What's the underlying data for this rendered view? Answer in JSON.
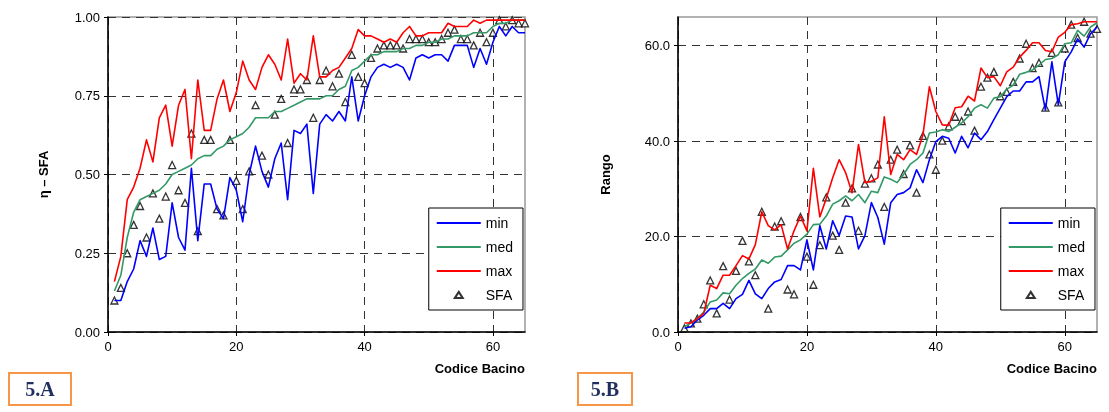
{
  "chart_data": [
    {
      "type": "line",
      "xlabel": "Codice Bacino",
      "ylabel": "η – SFA",
      "xlim": [
        0,
        65
      ],
      "xticks": [
        0,
        20,
        40,
        60
      ],
      "ylim": [
        0,
        1
      ],
      "yticks": [
        {
          "value": 0,
          "label": "0.00"
        },
        0.25,
        {
          "value": 0.5,
          "label": "0.50"
        },
        0.75,
        {
          "value": 1,
          "label": "1.00"
        }
      ],
      "grid": true,
      "legend": "bottom right",
      "annotations": [
        "5.A"
      ],
      "x": [
        1,
        2,
        3,
        4,
        5,
        6,
        7,
        8,
        9,
        10,
        11,
        12,
        13,
        14,
        15,
        16,
        17,
        18,
        19,
        20,
        21,
        22,
        23,
        24,
        25,
        26,
        27,
        28,
        29,
        30,
        31,
        32,
        33,
        34,
        35,
        36,
        37,
        38,
        39,
        40,
        41,
        42,
        43,
        44,
        45,
        46,
        47,
        48,
        49,
        50,
        51,
        52,
        53,
        54,
        55,
        56,
        57,
        58,
        59,
        60,
        61,
        62,
        63,
        64,
        65
      ],
      "series": [
        {
          "name": "min",
          "marker": "none",
          "color": "#0000ff",
          "values": [
            0.1,
            0.1,
            0.16,
            0.2,
            0.29,
            0.24,
            0.33,
            0.23,
            0.24,
            0.41,
            0.3,
            0.26,
            0.52,
            0.29,
            0.47,
            0.47,
            0.39,
            0.36,
            0.49,
            0.45,
            0.35,
            0.5,
            0.59,
            0.51,
            0.46,
            0.55,
            0.6,
            0.42,
            0.64,
            0.63,
            0.66,
            0.44,
            0.66,
            0.69,
            0.67,
            0.7,
            0.67,
            0.81,
            0.67,
            0.75,
            0.81,
            0.84,
            0.85,
            0.84,
            0.85,
            0.84,
            0.8,
            0.87,
            0.88,
            0.87,
            0.88,
            0.88,
            0.86,
            0.91,
            0.91,
            0.91,
            0.84,
            0.9,
            0.85,
            0.92,
            0.97,
            0.94,
            0.97,
            0.95,
            0.95
          ]
        },
        {
          "name": "med",
          "marker": "none",
          "color": "#339966",
          "values": [
            0.13,
            0.18,
            0.3,
            0.38,
            0.42,
            0.43,
            0.44,
            0.45,
            0.47,
            0.5,
            0.51,
            0.52,
            0.53,
            0.55,
            0.56,
            0.56,
            0.58,
            0.59,
            0.61,
            0.62,
            0.63,
            0.65,
            0.68,
            0.68,
            0.68,
            0.7,
            0.7,
            0.71,
            0.72,
            0.73,
            0.74,
            0.74,
            0.74,
            0.75,
            0.75,
            0.77,
            0.78,
            0.83,
            0.84,
            0.86,
            0.88,
            0.88,
            0.89,
            0.89,
            0.89,
            0.9,
            0.9,
            0.91,
            0.91,
            0.92,
            0.92,
            0.93,
            0.93,
            0.94,
            0.94,
            0.94,
            0.95,
            0.95,
            0.95,
            0.97,
            0.98,
            0.98,
            0.99,
            0.99,
            0.99
          ]
        },
        {
          "name": "max",
          "marker": "none",
          "color": "#ff0000",
          "values": [
            0.16,
            0.24,
            0.42,
            0.46,
            0.52,
            0.61,
            0.54,
            0.68,
            0.72,
            0.59,
            0.72,
            0.77,
            0.55,
            0.8,
            0.64,
            0.64,
            0.74,
            0.8,
            0.7,
            0.76,
            0.86,
            0.8,
            0.77,
            0.84,
            0.88,
            0.85,
            0.8,
            0.93,
            0.79,
            0.82,
            0.8,
            0.94,
            0.81,
            0.81,
            0.83,
            0.84,
            0.87,
            0.9,
            0.96,
            0.94,
            0.94,
            0.93,
            0.92,
            0.93,
            0.92,
            0.95,
            0.97,
            0.94,
            0.94,
            0.95,
            0.95,
            0.95,
            0.98,
            0.97,
            0.97,
            0.97,
            0.99,
            0.98,
            0.99,
            0.99,
            0.99,
            0.99,
            0.99,
            0.99,
            0.99
          ]
        },
        {
          "name": "SFA",
          "type": "scatter",
          "marker": "triangle",
          "color": "#000000",
          "values": [
            0.1,
            0.14,
            0.25,
            0.34,
            0.4,
            0.3,
            0.44,
            0.36,
            0.43,
            0.53,
            0.45,
            0.41,
            0.63,
            0.32,
            0.61,
            0.61,
            0.39,
            0.37,
            0.61,
            0.48,
            0.39,
            0.51,
            0.72,
            0.56,
            0.5,
            0.69,
            0.74,
            0.6,
            0.77,
            0.77,
            0.8,
            0.68,
            0.8,
            0.83,
            0.78,
            0.82,
            0.73,
            0.88,
            0.81,
            0.79,
            0.87,
            0.9,
            0.91,
            0.91,
            0.91,
            0.9,
            0.93,
            0.93,
            0.93,
            0.92,
            0.92,
            0.93,
            0.95,
            0.96,
            0.93,
            0.93,
            0.91,
            0.95,
            0.92,
            0.95,
            0.99,
            0.97,
            0.99,
            0.98,
            0.98
          ]
        }
      ]
    },
    {
      "type": "line",
      "xlabel": "Codice Bacino",
      "ylabel": "Rango",
      "xlim": [
        0,
        65
      ],
      "xticks": [
        0,
        20,
        40,
        60
      ],
      "ylim": [
        0,
        66
      ],
      "yticks": [
        {
          "value": 0,
          "label": "0.0"
        },
        {
          "value": 20,
          "label": "20.0"
        },
        {
          "value": 40,
          "label": "40.0"
        },
        {
          "value": 60,
          "label": "60.0"
        }
      ],
      "grid": true,
      "legend": "bottom right",
      "annotations": [
        "5.B"
      ],
      "x": [
        1,
        2,
        3,
        4,
        5,
        6,
        7,
        8,
        9,
        10,
        11,
        12,
        13,
        14,
        15,
        16,
        17,
        18,
        19,
        20,
        21,
        22,
        23,
        24,
        25,
        26,
        27,
        28,
        29,
        30,
        31,
        32,
        33,
        34,
        35,
        36,
        37,
        38,
        39,
        40,
        41,
        42,
        43,
        44,
        45,
        46,
        47,
        48,
        49,
        50,
        51,
        52,
        53,
        54,
        55,
        56,
        57,
        58,
        59,
        60,
        61,
        62,
        63,
        64,
        65
      ],
      "series": [
        {
          "name": "min",
          "marker": "none",
          "color": "#0000ff",
          "values": [
            0.8,
            1.1,
            2.5,
            3.5,
            4.9,
            4.9,
            6.0,
            4.9,
            7.0,
            7.9,
            10.8,
            8.0,
            7.0,
            9.1,
            10.5,
            11.0,
            13.9,
            13.9,
            13.0,
            19.3,
            13.0,
            22.3,
            17.4,
            23.3,
            20.2,
            24.3,
            24.1,
            17.4,
            20.2,
            27.1,
            24.0,
            18.4,
            27.1,
            28.8,
            29.2,
            30.2,
            34.0,
            31.3,
            36.1,
            39.9,
            41.0,
            40.6,
            37.5,
            41.0,
            38.6,
            41.7,
            40.3,
            42.0,
            44.5,
            46.9,
            49.3,
            50.5,
            50.5,
            52.4,
            52.4,
            53.5,
            46.5,
            56.6,
            47.6,
            56.6,
            58.7,
            61.4,
            59.7,
            62.5,
            63.9
          ]
        },
        {
          "name": "med",
          "marker": "none",
          "color": "#339966",
          "values": [
            1.1,
            1.9,
            2.8,
            4.2,
            6.3,
            6.7,
            8.2,
            8.0,
            9.8,
            11.2,
            12.3,
            13.2,
            15.1,
            14.4,
            15.7,
            15.9,
            17.2,
            18.6,
            19.3,
            20.5,
            22.5,
            22.6,
            24.3,
            26.8,
            27.5,
            28.5,
            27.5,
            28.8,
            27.1,
            29.5,
            29.2,
            32.5,
            32.0,
            31.3,
            33.0,
            35.1,
            36.1,
            37.5,
            41.7,
            41.9,
            42.4,
            42.0,
            42.9,
            43.8,
            45.1,
            46.9,
            47.6,
            46.9,
            49.0,
            49.3,
            50.9,
            51.7,
            54.0,
            54.4,
            54.9,
            55.9,
            57.1,
            57.3,
            58.1,
            60.4,
            60.6,
            63.2,
            62.0,
            63.9,
            64.8
          ]
        },
        {
          "name": "max",
          "marker": "none",
          "color": "#ff0000",
          "values": [
            1.9,
            1.9,
            2.8,
            3.9,
            9.8,
            9.1,
            11.9,
            11.9,
            13.9,
            16.0,
            15.3,
            18.3,
            25.2,
            22.3,
            21.4,
            22.5,
            17.4,
            21.2,
            24.3,
            21.2,
            34.3,
            24.1,
            28.0,
            32.3,
            36.1,
            33.4,
            29.2,
            39.3,
            31.3,
            31.6,
            32.3,
            45.1,
            33.0,
            37.2,
            36.1,
            38.2,
            37.2,
            41.3,
            51.4,
            46.2,
            43.4,
            43.3,
            47.0,
            47.2,
            49.4,
            48.4,
            55.3,
            53.3,
            53.5,
            51.6,
            54.5,
            55.5,
            57.6,
            59.0,
            60.6,
            60.6,
            59.0,
            58.7,
            61.8,
            62.8,
            64.4,
            64.6,
            65.0,
            65.0,
            65.0
          ]
        },
        {
          "name": "SFA",
          "type": "scatter",
          "marker": "triangle",
          "color": "#000000",
          "values": [
            0.8,
            1.8,
            2.8,
            5.8,
            10.8,
            3.9,
            13.8,
            6.8,
            12.8,
            19.1,
            14.8,
            11.9,
            25.2,
            4.9,
            22.1,
            23.2,
            8.9,
            7.9,
            24.1,
            15.8,
            9.9,
            18.2,
            28.2,
            20.2,
            17.2,
            27.1,
            30.1,
            21.2,
            31.1,
            32.2,
            35.1,
            26.2,
            36.1,
            38.2,
            33.1,
            39.1,
            29.2,
            41.1,
            37.2,
            34.0,
            40.1,
            43.1,
            45.1,
            44.2,
            46.2,
            42.2,
            51.4,
            53.3,
            54.5,
            49.4,
            50.3,
            52.4,
            57.3,
            60.4,
            55.3,
            56.4,
            47.0,
            58.5,
            48.1,
            59.4,
            64.4,
            61.6,
            65.0,
            62.5,
            63.5
          ]
        }
      ]
    }
  ]
}
